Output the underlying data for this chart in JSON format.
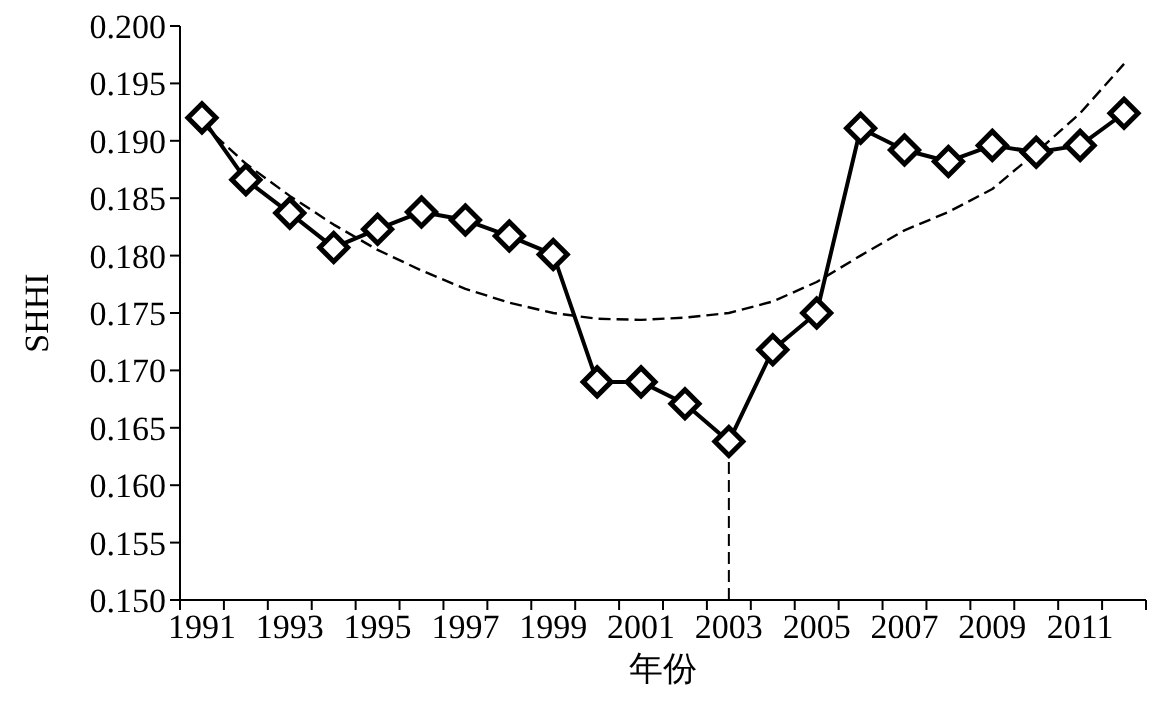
{
  "chart_data": {
    "type": "line",
    "xlabel": "年份",
    "ylabel": "SHHI",
    "categories": [
      "1991",
      null,
      "1993",
      null,
      "1995",
      null,
      "1997",
      null,
      "1999",
      null,
      "2001",
      null,
      "2003",
      null,
      "2005",
      null,
      "2007",
      null,
      "2009",
      null,
      "2011",
      null
    ],
    "series": [
      {
        "color": "#000000",
        "marker": "diamond",
        "line_style": "solid",
        "values": [
          0.192,
          0.1866,
          0.1837,
          0.1807,
          0.1823,
          0.1838,
          0.1831,
          0.1817,
          0.1801,
          0.169,
          0.169,
          0.1671,
          0.1638,
          0.1718,
          0.175,
          0.1911,
          0.1892,
          0.1882,
          0.1896,
          0.189,
          0.1896,
          0.1924
        ]
      },
      {
        "color": "#000000",
        "marker": "none",
        "line_style": "dashed",
        "values": [
          0.1915,
          0.188,
          0.1852,
          0.1827,
          0.1805,
          0.1787,
          0.1771,
          0.1759,
          0.175,
          0.1745,
          0.1744,
          0.1746,
          0.175,
          0.176,
          0.1777,
          0.18,
          0.1822,
          0.1838,
          0.1858,
          0.189,
          0.1924,
          0.1967
        ]
      }
    ],
    "ref_lines": [
      {
        "axis": "x",
        "value": "2003",
        "line_style": "dashed",
        "color": "#000000"
      }
    ],
    "ylim": [
      0.15,
      0.2
    ],
    "yticks": [
      {
        "value": 0.15,
        "label": "0.150"
      },
      {
        "value": 0.155,
        "label": "0.155"
      },
      {
        "value": 0.16,
        "label": "0.160"
      },
      {
        "value": 0.165,
        "label": "0.165"
      },
      {
        "value": 0.17,
        "label": "0.170"
      },
      {
        "value": 0.175,
        "label": "0.175"
      },
      {
        "value": 0.18,
        "label": "0.180"
      },
      {
        "value": 0.185,
        "label": "0.185"
      },
      {
        "value": 0.19,
        "label": "0.190"
      },
      {
        "value": 0.195,
        "label": "0.195"
      },
      {
        "value": 0.2,
        "label": "0.200"
      }
    ],
    "grid": false
  }
}
